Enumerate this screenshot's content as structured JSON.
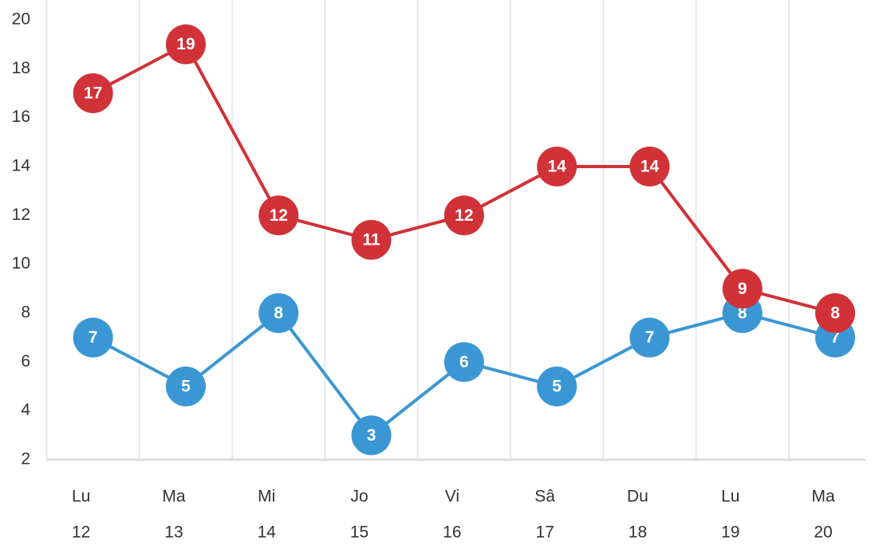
{
  "chart_data": {
    "type": "line",
    "categories": [
      [
        "Lu",
        "12"
      ],
      [
        "Ma",
        "13"
      ],
      [
        "Mi",
        "14"
      ],
      [
        "Jo",
        "15"
      ],
      [
        "Vi",
        "16"
      ],
      [
        "Sâ",
        "17"
      ],
      [
        "Du",
        "18"
      ],
      [
        "Lu",
        "19"
      ],
      [
        "Ma",
        "20"
      ]
    ],
    "series": [
      {
        "color": "#3a97d4",
        "values": [
          7,
          5,
          8,
          3,
          6,
          5,
          7,
          8,
          7
        ]
      },
      {
        "color": "#d03238",
        "values": [
          17,
          19,
          12,
          11,
          12,
          14,
          14,
          9,
          8
        ]
      }
    ],
    "ylim": [
      2,
      20
    ],
    "yticks": [
      2,
      4,
      6,
      8,
      10,
      12,
      14,
      16,
      18,
      20
    ],
    "grid": true
  }
}
